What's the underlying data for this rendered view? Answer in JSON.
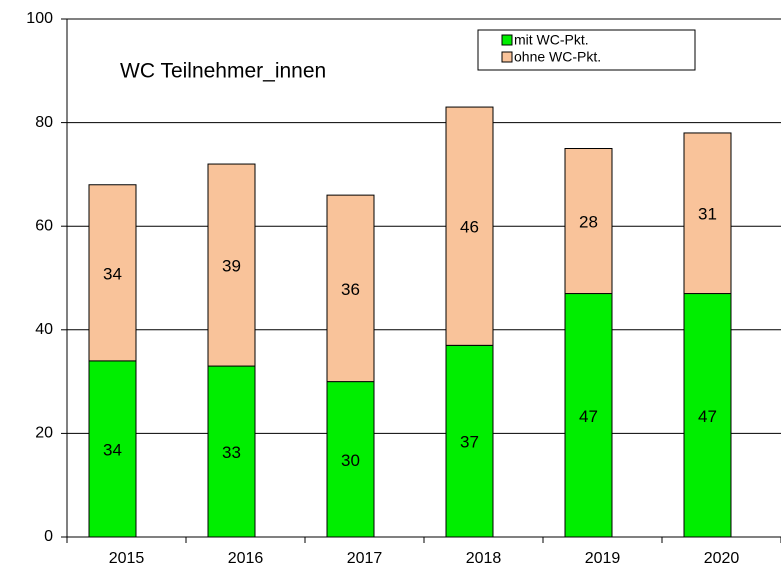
{
  "chart_data": {
    "type": "bar",
    "stacked": true,
    "title": "WC Teilnehmer_innen",
    "categories": [
      "2015",
      "2016",
      "2017",
      "2018",
      "2019",
      "2020"
    ],
    "series": [
      {
        "name": "mit WC-Pkt.",
        "color": "#00ee00",
        "values": [
          34,
          33,
          30,
          37,
          47,
          47
        ]
      },
      {
        "name": "ohne WC-Pkt.",
        "color": "#f9c39a",
        "values": [
          34,
          39,
          36,
          46,
          28,
          31
        ]
      }
    ],
    "ylim": [
      0,
      100
    ],
    "yticks": [
      0,
      20,
      40,
      60,
      80,
      100
    ],
    "grid": true,
    "legend": "top-right"
  }
}
